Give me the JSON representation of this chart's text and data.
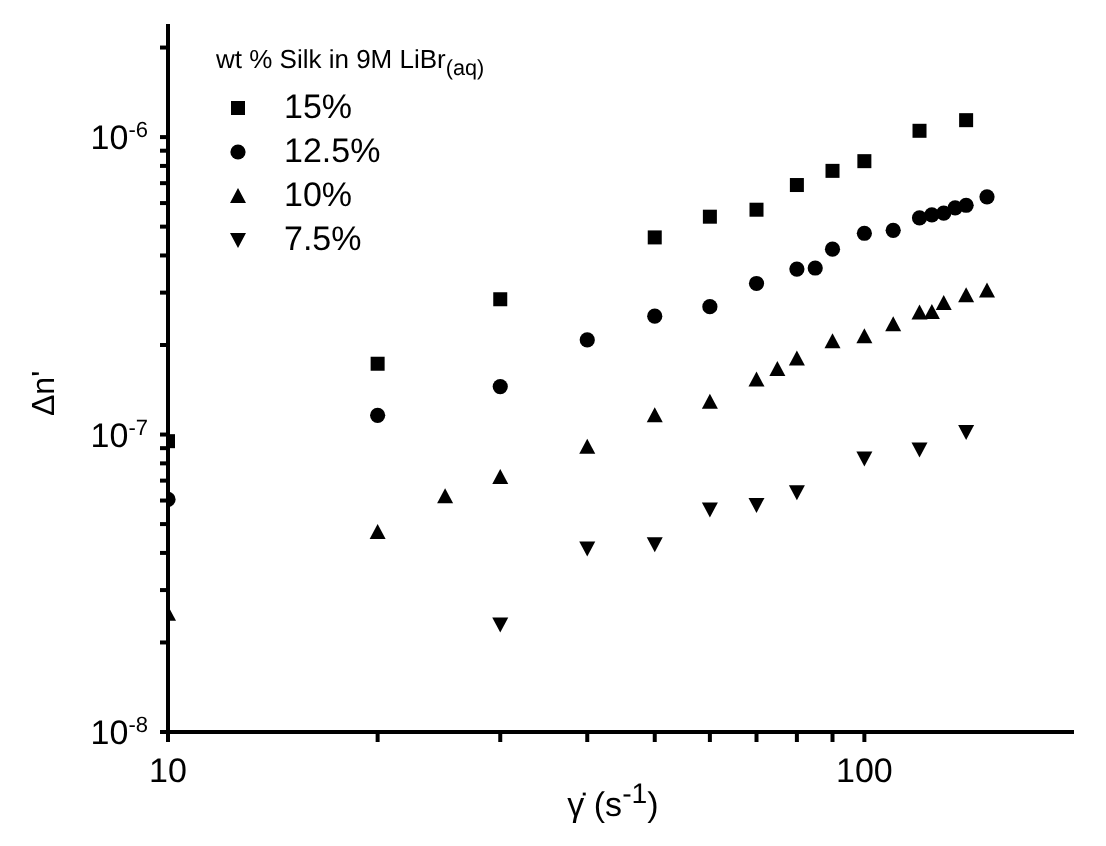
{
  "chart_data": {
    "type": "scatter",
    "xlabel": "γ̇ (s$^{-1}$)",
    "ylabel": "Δn'",
    "legend_title": "wt % Silk in 9M LiBr$_{(aq)}$",
    "log": "xy",
    "grid": false,
    "legend": "top left",
    "xlim": [
      10,
      200
    ],
    "ylim": [
      1e-08,
      2.4e-06
    ],
    "xticks": [
      10,
      {
        "value": 20,
        "label": null
      },
      {
        "value": 30,
        "label": null
      },
      {
        "value": 40,
        "label": null
      },
      {
        "value": 50,
        "label": null
      },
      {
        "value": 60,
        "label": null
      },
      {
        "value": 70,
        "label": null
      },
      {
        "value": 80,
        "label": null
      },
      {
        "value": 90,
        "label": null
      },
      100
    ],
    "yticks": [
      {
        "value": 1e-08,
        "label": "10$^{-8}$"
      },
      {
        "value": 2e-08,
        "label": null
      },
      {
        "value": 3e-08,
        "label": null
      },
      {
        "value": 4e-08,
        "label": null
      },
      {
        "value": 5e-08,
        "label": null
      },
      {
        "value": 6e-08,
        "label": null
      },
      {
        "value": 7e-08,
        "label": null
      },
      {
        "value": 8e-08,
        "label": null
      },
      {
        "value": 9e-08,
        "label": null
      },
      {
        "value": 1e-07,
        "label": "10$^{-7}$"
      },
      {
        "value": 2e-07,
        "label": null
      },
      {
        "value": 3e-07,
        "label": null
      },
      {
        "value": 4e-07,
        "label": null
      },
      {
        "value": 5e-07,
        "label": null
      },
      {
        "value": 6e-07,
        "label": null
      },
      {
        "value": 7e-07,
        "label": null
      },
      {
        "value": 8e-07,
        "label": null
      },
      {
        "value": 9e-07,
        "label": null
      },
      {
        "value": 1e-06,
        "label": "10$^{-6}$"
      },
      {
        "value": 2e-06,
        "label": null
      }
    ],
    "series": [
      {
        "name": "15%",
        "color": "#000000",
        "marker": "square",
        "x": [
          10,
          20,
          30,
          50,
          60,
          70,
          80,
          90,
          100,
          120,
          140
        ],
        "values": [
          9.5e-08,
          1.73e-07,
          2.85e-07,
          4.6e-07,
          5.4e-07,
          5.7e-07,
          6.9e-07,
          7.7e-07,
          8.3e-07,
          1.05e-06,
          1.14e-06
        ]
      },
      {
        "name": "12.5%",
        "color": "#000000",
        "marker": "circle",
        "x": [
          10,
          20,
          30,
          40,
          50,
          60,
          70,
          80,
          85,
          90,
          100,
          110,
          120,
          125,
          130,
          135,
          140,
          150
        ],
        "values": [
          6.05e-08,
          1.16e-07,
          1.45e-07,
          2.08e-07,
          2.5e-07,
          2.69e-07,
          3.22e-07,
          3.6e-07,
          3.63e-07,
          4.2e-07,
          4.75e-07,
          4.86e-07,
          5.35e-07,
          5.48e-07,
          5.55e-07,
          5.78e-07,
          5.9e-07,
          6.3e-07
        ]
      },
      {
        "name": "10%",
        "color": "#000000",
        "marker": "triangle",
        "x": [
          10,
          20,
          25,
          30,
          40,
          50,
          60,
          70,
          75,
          80,
          90,
          100,
          110,
          120,
          125,
          130,
          140,
          150
        ],
        "values": [
          2.5e-08,
          4.7e-08,
          6.2e-08,
          7.2e-08,
          9.1e-08,
          1.16e-07,
          1.29e-07,
          1.53e-07,
          1.66e-07,
          1.8e-07,
          2.06e-07,
          2.14e-07,
          2.35e-07,
          2.57e-07,
          2.58e-07,
          2.77e-07,
          2.94e-07,
          3.05e-07
        ]
      },
      {
        "name": "7.5%",
        "color": "#000000",
        "marker": "triangle-down",
        "x": [
          30,
          40,
          50,
          60,
          70,
          80,
          100,
          120,
          140
        ],
        "values": [
          2.3e-08,
          4.14e-08,
          4.28e-08,
          5.6e-08,
          5.8e-08,
          6.4e-08,
          8.3e-08,
          8.9e-08,
          1.02e-07
        ]
      }
    ]
  }
}
